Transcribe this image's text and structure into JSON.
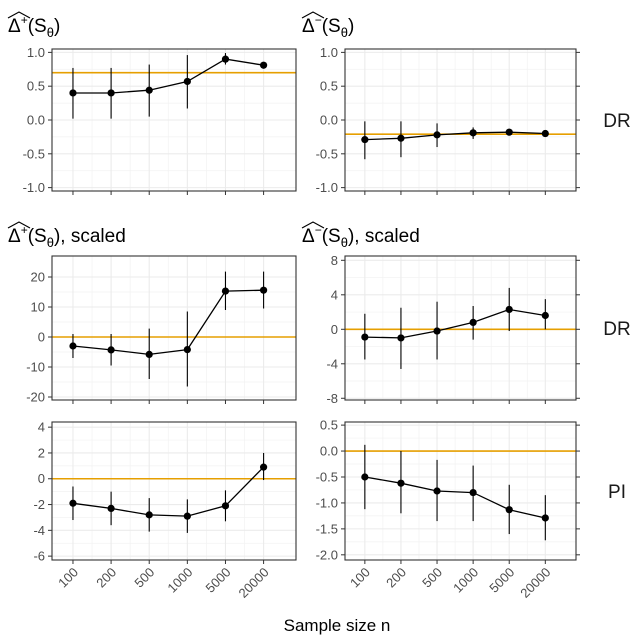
{
  "chart_data": {
    "type": "line",
    "categories": [
      "100",
      "200",
      "500",
      "1000",
      "5000",
      "20000"
    ],
    "xlabel": "Sample size n",
    "reference_line_color": "#E69F00",
    "series_color": "#000000",
    "panels": [
      {
        "title_symbol": "Δ",
        "title_sup": "+",
        "title_arg": "(S",
        "title_sub": "θ",
        "title_tail": ")",
        "row_label": "",
        "ylim": [
          -1.05,
          1.05
        ],
        "yticks": [
          -1.0,
          -0.5,
          0.0,
          0.5,
          1.0
        ],
        "ytick_labels": [
          "-1.0",
          "-0.5",
          "0.0",
          "0.5",
          "1.0"
        ],
        "reference": 0.7,
        "values": [
          0.4,
          0.4,
          0.44,
          0.57,
          0.9,
          0.81
        ],
        "lower": [
          0.02,
          0.02,
          0.05,
          0.17,
          0.82,
          0.77
        ],
        "upper": [
          0.77,
          0.77,
          0.82,
          0.96,
          0.99,
          0.85
        ]
      },
      {
        "title_symbol": "Δ",
        "title_sup": "−",
        "title_arg": "(S",
        "title_sub": "θ",
        "title_tail": ")",
        "row_label": "DR",
        "ylim": [
          -1.05,
          1.05
        ],
        "yticks": [
          -1.0,
          -0.5,
          0.0,
          0.5,
          1.0
        ],
        "ytick_labels": [
          "-1.0",
          "-0.5",
          "0.0",
          "0.5",
          "1.0"
        ],
        "reference": -0.21,
        "values": [
          -0.29,
          -0.27,
          -0.22,
          -0.19,
          -0.18,
          -0.2
        ],
        "lower": [
          -0.58,
          -0.55,
          -0.4,
          -0.28,
          -0.23,
          -0.23
        ],
        "upper": [
          -0.02,
          -0.02,
          -0.05,
          -0.11,
          -0.13,
          -0.17
        ]
      },
      {
        "title_symbol": "Δ",
        "title_sup": "+",
        "title_arg": "(S",
        "title_sub": "θ",
        "title_tail": "), scaled",
        "row_label": "",
        "ylim": [
          -21,
          27
        ],
        "yticks": [
          -20,
          -10,
          0,
          10,
          20
        ],
        "ytick_labels": [
          "-20",
          "-10",
          "0",
          "10",
          "20"
        ],
        "reference": 0,
        "values": [
          -3.0,
          -4.3,
          -5.8,
          -4.2,
          15.3,
          15.6
        ],
        "lower": [
          -7.0,
          -9.5,
          -14.0,
          -16.5,
          9.0,
          9.5
        ],
        "upper": [
          1.0,
          1.0,
          2.8,
          8.5,
          21.8,
          21.8
        ]
      },
      {
        "title_symbol": "Δ",
        "title_sup": "−",
        "title_arg": "(S",
        "title_sub": "θ",
        "title_tail": "), scaled",
        "row_label": "DR",
        "ylim": [
          -8.2,
          8.5
        ],
        "yticks": [
          -8,
          -4,
          0,
          4,
          8
        ],
        "ytick_labels": [
          "-8",
          "-4",
          "0",
          "4",
          "8"
        ],
        "reference": 0,
        "values": [
          -0.9,
          -1.0,
          -0.2,
          0.8,
          2.3,
          1.6
        ],
        "lower": [
          -3.5,
          -4.6,
          -3.5,
          -1.2,
          -0.2,
          0.0
        ],
        "upper": [
          1.8,
          2.5,
          3.2,
          2.7,
          4.8,
          3.5
        ]
      },
      {
        "title_symbol": "",
        "title_sup": "",
        "title_arg": "",
        "title_sub": "",
        "title_tail": "",
        "row_label": "",
        "ylim": [
          -6.3,
          4.4
        ],
        "yticks": [
          -6,
          -4,
          -2,
          0,
          2,
          4
        ],
        "ytick_labels": [
          "-6",
          "-4",
          "-2",
          "0",
          "2",
          "4"
        ],
        "reference": 0,
        "values": [
          -1.9,
          -2.3,
          -2.8,
          -2.9,
          -2.1,
          0.9
        ],
        "lower": [
          -3.2,
          -3.6,
          -4.1,
          -4.2,
          -3.3,
          -0.1
        ],
        "upper": [
          -0.6,
          -1.0,
          -1.5,
          -1.6,
          -0.9,
          2.0
        ]
      },
      {
        "title_symbol": "",
        "title_sup": "",
        "title_arg": "",
        "title_sub": "",
        "title_tail": "",
        "row_label": "PI",
        "ylim": [
          -2.1,
          0.56
        ],
        "yticks": [
          -2.0,
          -1.5,
          -1.0,
          -0.5,
          0.0,
          0.5
        ],
        "ytick_labels": [
          "-2.0",
          "-1.5",
          "-1.0",
          "-0.5",
          "0.0",
          "0.5"
        ],
        "reference": 0,
        "values": [
          -0.5,
          -0.62,
          -0.77,
          -0.8,
          -1.13,
          -1.29
        ],
        "lower": [
          -1.12,
          -1.2,
          -1.35,
          -1.35,
          -1.6,
          -1.72
        ],
        "upper": [
          0.12,
          0.0,
          -0.17,
          -0.28,
          -0.65,
          -0.85
        ]
      }
    ]
  }
}
